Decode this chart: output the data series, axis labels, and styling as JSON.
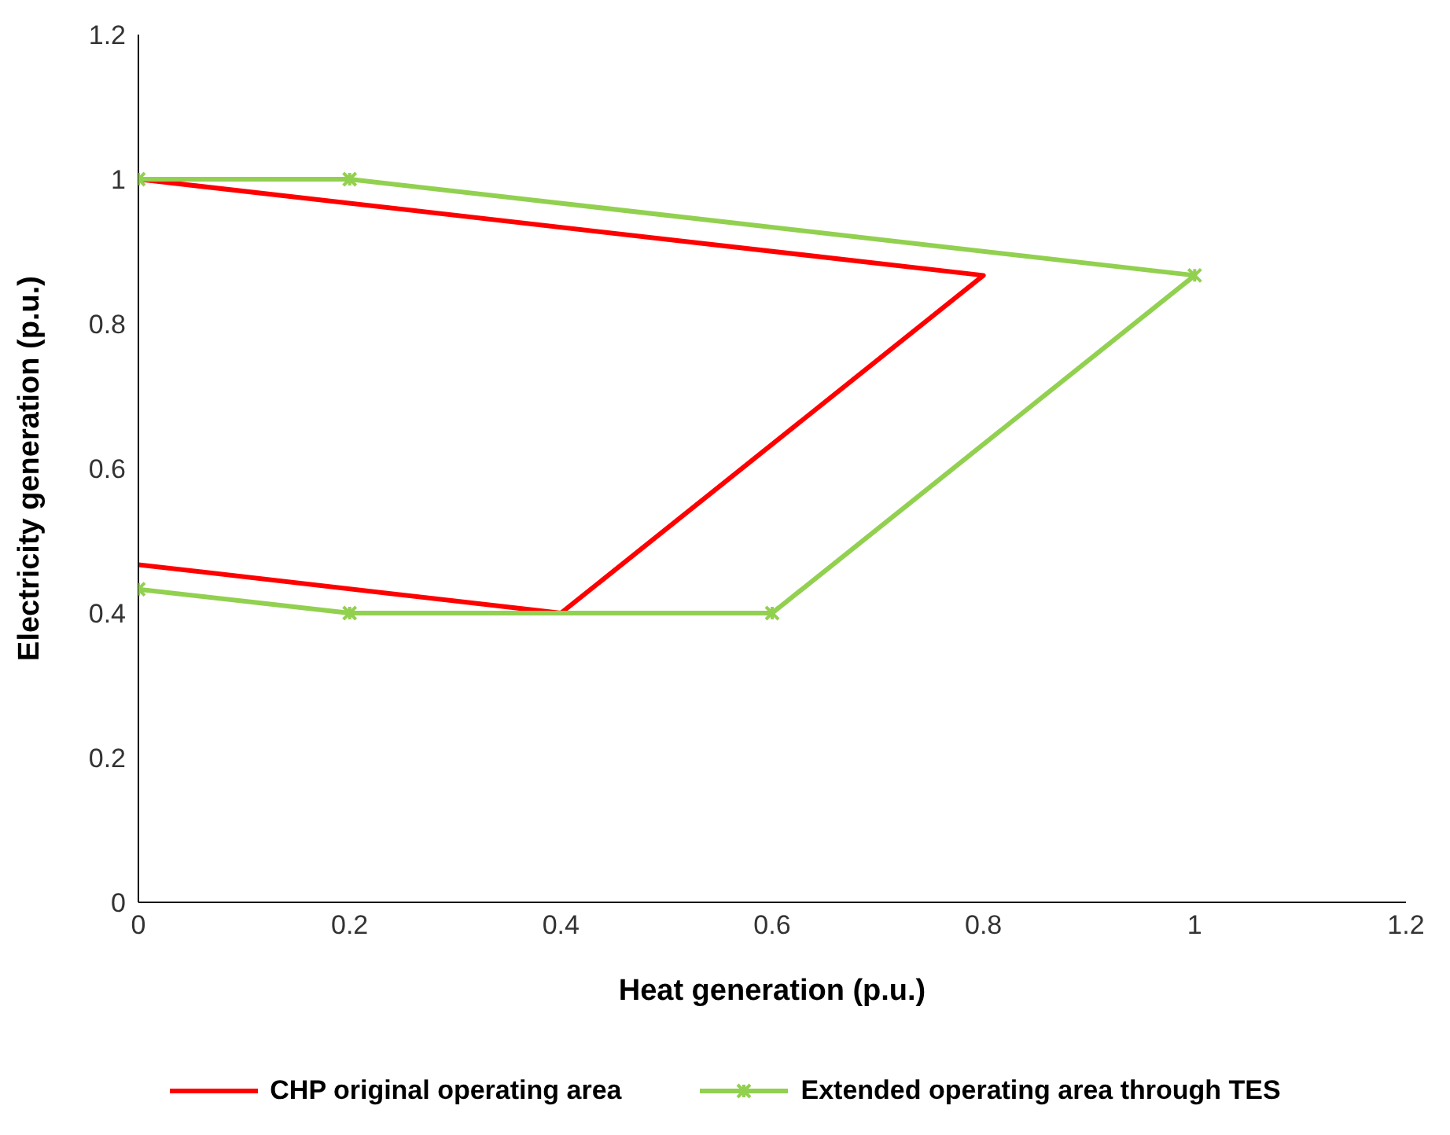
{
  "chart_data": {
    "type": "line",
    "xlabel": "Heat generation (p.u.)",
    "ylabel": "Electricity generation (p.u.)",
    "series": [
      {
        "name": "CHP original operating area",
        "color": "#ff0000",
        "marker": "none",
        "x": [
          0,
          0.8,
          0.4,
          0
        ],
        "values": [
          1,
          0.867,
          0.4,
          0.467
        ]
      },
      {
        "name": "Extended operating area through TES",
        "color": "#92d050",
        "marker": "cross",
        "x": [
          0,
          0.2,
          1,
          0.6,
          0.2,
          0
        ],
        "values": [
          1,
          1,
          0.867,
          0.4,
          0.4,
          0.433
        ]
      }
    ],
    "xlim": [
      0,
      1.2
    ],
    "xticks": [
      0,
      0.2,
      0.4,
      0.6,
      0.8,
      1,
      1.2
    ],
    "ylim": [
      0,
      1.2
    ],
    "yticks": [
      0,
      0.2,
      0.4,
      0.6,
      0.8,
      1,
      1.2
    ],
    "grid": false,
    "legend": "bottom"
  }
}
